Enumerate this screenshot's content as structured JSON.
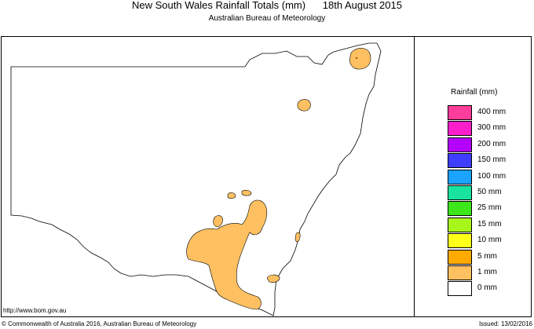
{
  "title": {
    "main": "New South Wales Rainfall Totals (mm)",
    "date": "18th August 2015"
  },
  "subtitle": "Australian Bureau of Meteorology",
  "url": "http://www.bom.gov.au",
  "legend": {
    "title": "Rainfall (mm)",
    "items": [
      {
        "label": "400 mm",
        "color": "#ff3d9a"
      },
      {
        "label": "300 mm",
        "color": "#ff1ecc"
      },
      {
        "label": "200 mm",
        "color": "#b400ff"
      },
      {
        "label": "150 mm",
        "color": "#3f3dff"
      },
      {
        "label": "100 mm",
        "color": "#1aa3ff"
      },
      {
        "label": "50 mm",
        "color": "#1ae3a0"
      },
      {
        "label": "25 mm",
        "color": "#3ce61a"
      },
      {
        "label": "15 mm",
        "color": "#a8f51a"
      },
      {
        "label": "10 mm",
        "color": "#ffff1a"
      },
      {
        "label": "5 mm",
        "color": "#ffaa00"
      },
      {
        "label": "1 mm",
        "color": "#ffc061"
      },
      {
        "label": "0 mm",
        "color": "#ffffff"
      }
    ]
  },
  "footer": {
    "copyright": "© Commonwealth of Australia 2016, Australian Bureau of Meteorology",
    "issued": "Issued: 13/02/2016"
  }
}
